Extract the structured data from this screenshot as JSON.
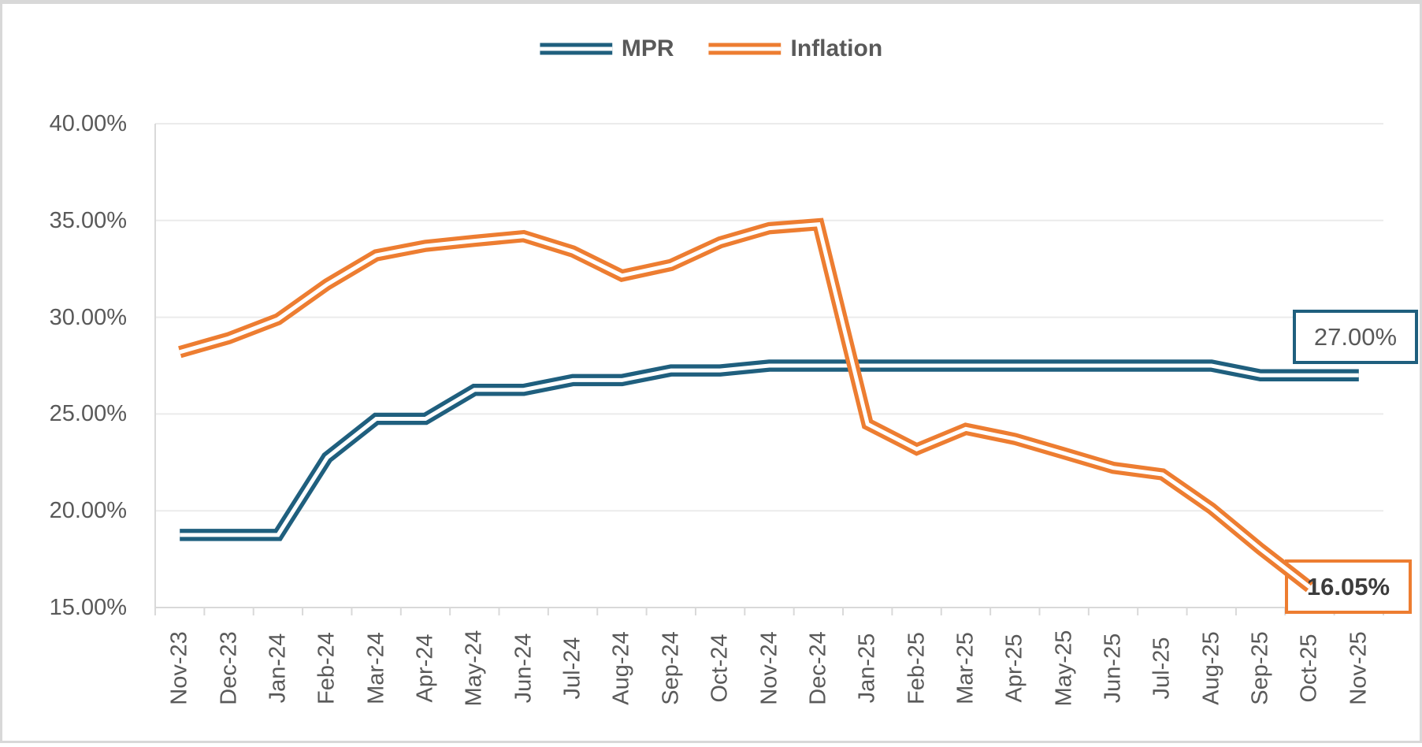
{
  "chart_data": {
    "type": "line",
    "title": "",
    "categories": [
      "Nov-23",
      "Dec-23",
      "Jan-24",
      "Feb-24",
      "Mar-24",
      "Apr-24",
      "May-24",
      "Jun-24",
      "Jul-24",
      "Aug-24",
      "Sep-24",
      "Oct-24",
      "Nov-24",
      "Dec-24",
      "Jan-25",
      "Feb-25",
      "Mar-25",
      "Apr-25",
      "May-25",
      "Jun-25",
      "Jul-25",
      "Aug-25",
      "Sep-25",
      "Oct-25",
      "Nov-25"
    ],
    "series": [
      {
        "name": "MPR",
        "color": "#1f5f7e",
        "end_label": "27.00%",
        "values": [
          18.75,
          18.75,
          18.75,
          22.75,
          24.75,
          24.75,
          26.25,
          26.25,
          26.75,
          26.75,
          27.25,
          27.25,
          27.5,
          27.5,
          27.5,
          27.5,
          27.5,
          27.5,
          27.5,
          27.5,
          27.5,
          27.5,
          27.0,
          27.0,
          27.0
        ]
      },
      {
        "name": "Inflation",
        "color": "#ed7d31",
        "end_label": "16.05%",
        "values": [
          28.2,
          28.92,
          29.9,
          31.7,
          33.2,
          33.69,
          33.95,
          34.19,
          33.4,
          32.15,
          32.7,
          33.87,
          34.6,
          34.8,
          24.48,
          23.18,
          24.23,
          23.71,
          22.97,
          22.22,
          21.88,
          20.12,
          18.02,
          16.05
        ]
      }
    ],
    "ylim": [
      15,
      40
    ],
    "ytick_step": 5,
    "ytick_labels": [
      "40.00%",
      "35.00%",
      "30.00%",
      "25.00%",
      "20.00%",
      "15.00%"
    ],
    "grid": true,
    "legend_position": "top",
    "line_style": "double",
    "colors": {
      "grid": "#ebebeb",
      "axis": "#d9d9d9",
      "tick_text": "#595959"
    }
  }
}
